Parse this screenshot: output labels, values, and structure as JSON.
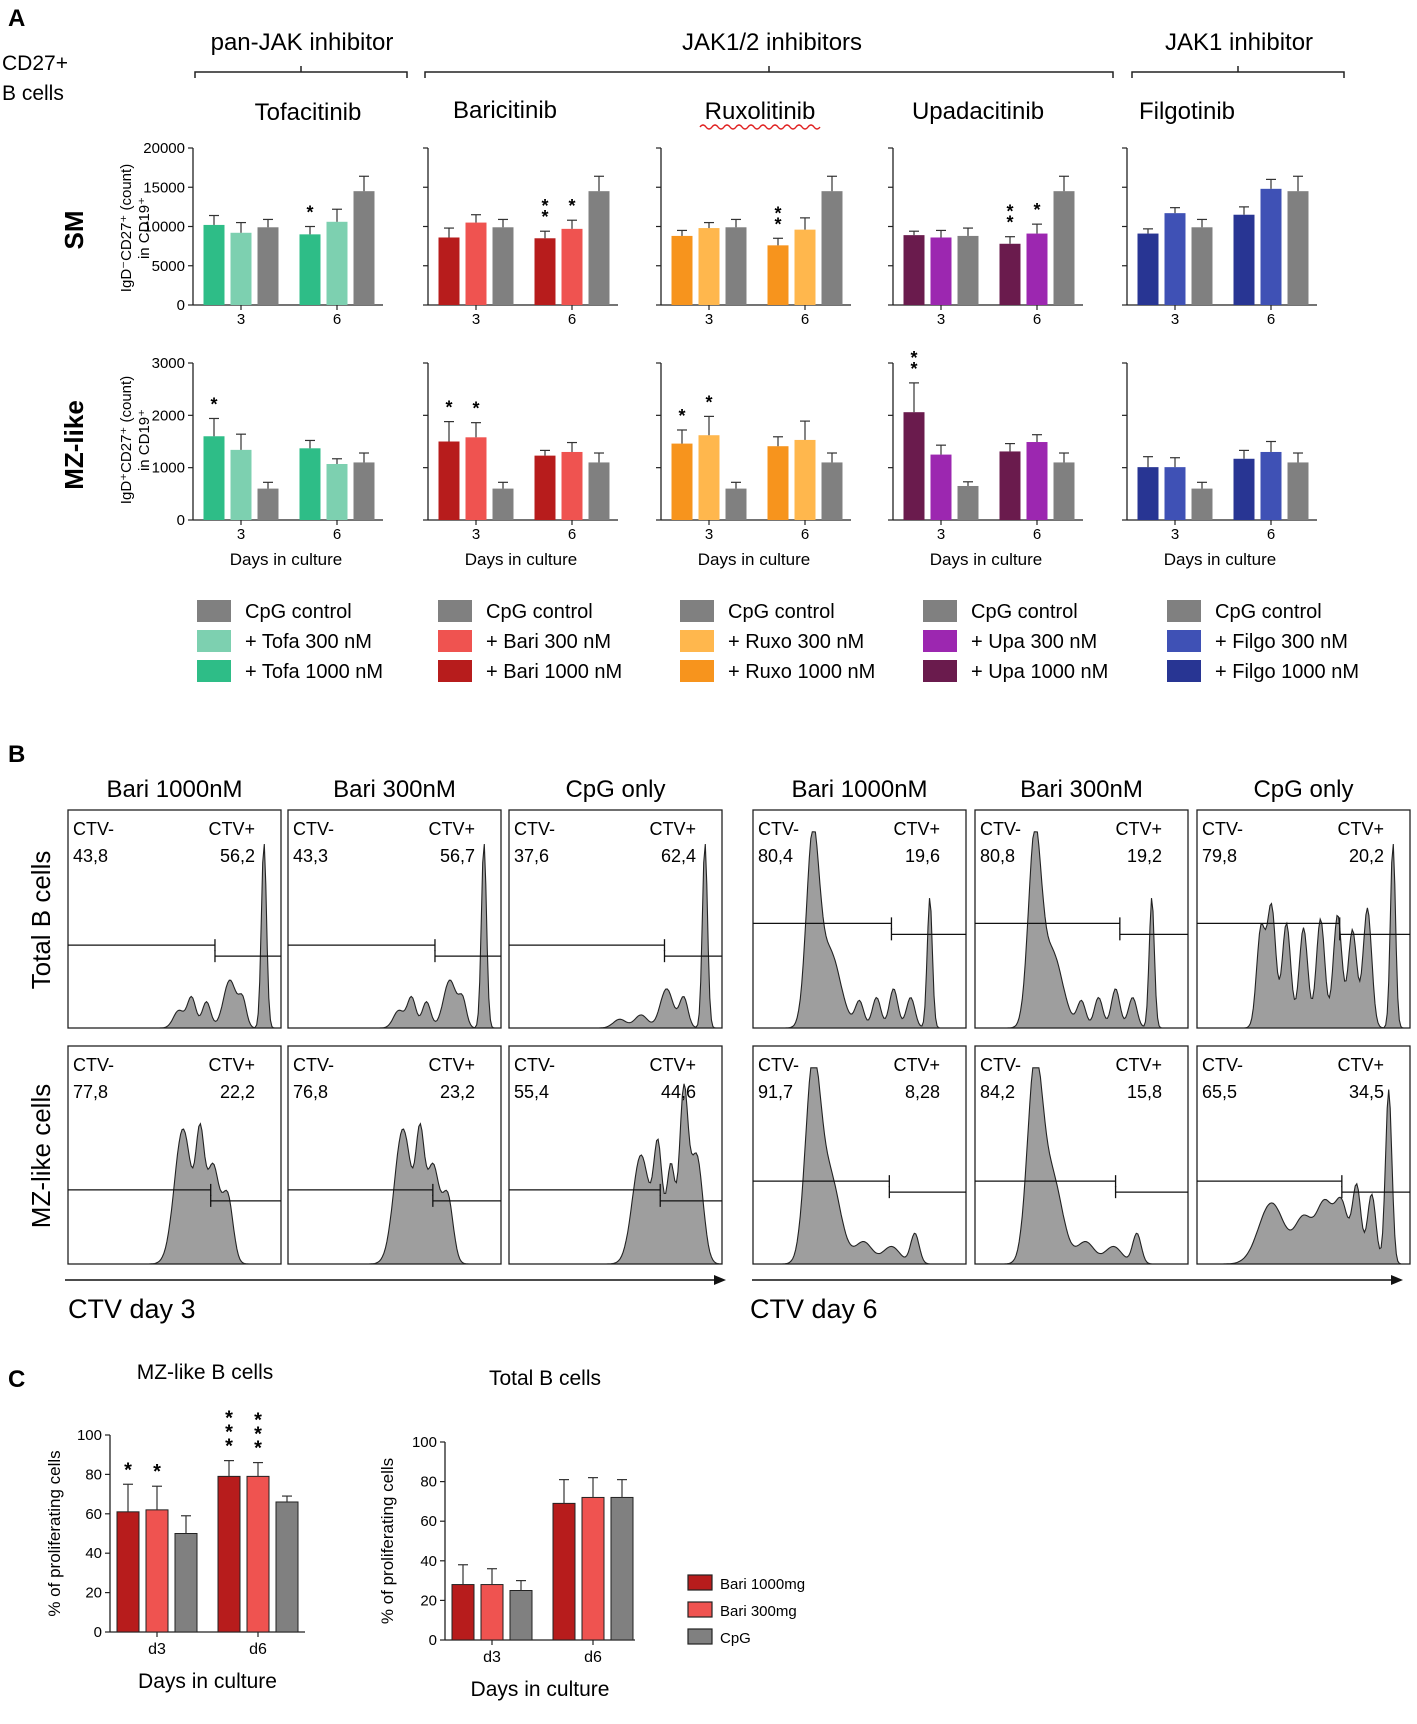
{
  "figure": {
    "panel_a": {
      "label": "A",
      "cell_label_1": "CD27+",
      "cell_label_2": "B cells",
      "groups": [
        {
          "label": "pan-JAK inhibitor"
        },
        {
          "label": "JAK1/2 inhibitors"
        },
        {
          "label": "JAK1 inhibitor"
        }
      ],
      "rows": [
        {
          "label": "SM",
          "ylabel_1": "IgD⁻CD27⁺ (count)",
          "ylabel_2": "in CD19⁺"
        },
        {
          "label": "MZ-like",
          "ylabel_1": "IgD⁺CD27⁺ (count)",
          "ylabel_2": "in CD19⁺"
        }
      ],
      "drugs": [
        {
          "name": "Tofacitinib",
          "short": "Tofa",
          "colors": {
            "c300": "#7dd0b0",
            "c1000": "#2ebd87",
            "ctrl": "#808080"
          },
          "legend": {
            "ctrl": "CpG control",
            "l300": "+ Tofa 300 nM",
            "l1000": "+ Tofa 1000 nM"
          }
        },
        {
          "name": "Baricitinib",
          "short": "Bari",
          "colors": {
            "c300": "#ef5350",
            "c1000": "#b71c1c",
            "ctrl": "#808080"
          },
          "legend": {
            "ctrl": "CpG control",
            "l300": "+ Bari 300 nM",
            "l1000": "+ Bari 1000 nM"
          }
        },
        {
          "name": "Ruxolitinib",
          "short": "Ruxo",
          "colors": {
            "c300": "#ffb74d",
            "c1000": "#f7941d",
            "ctrl": "#808080"
          },
          "legend": {
            "ctrl": "CpG control",
            "l300": "+ Ruxo 300 nM",
            "l1000": "+ Ruxo 1000 nM"
          }
        },
        {
          "name": "Upadacitinib",
          "short": "Upa",
          "colors": {
            "c300": "#9c27b0",
            "c1000": "#6a1b4d",
            "ctrl": "#808080"
          },
          "legend": {
            "ctrl": "CpG control",
            "l300": "+ Upa 300 nM",
            "l1000": "+ Upa 1000 nM"
          }
        },
        {
          "name": "Filgotinib",
          "short": "Filgo",
          "colors": {
            "c300": "#3f51b5",
            "c1000": "#283593",
            "ctrl": "#808080"
          },
          "legend": {
            "ctrl": "CpG control",
            "l300": "+ Filgo 300 nM",
            "l1000": "+ Filgo 1000 nM"
          }
        }
      ],
      "xlabel": "Days in culture"
    },
    "panel_b": {
      "label": "B",
      "col_titles": [
        "Bari 1000nM",
        "Bari 300nM",
        "CpG only",
        "Bari 1000nM",
        "Bari 300nM",
        "CpG only"
      ],
      "row_labels": [
        "Total B cells",
        "MZ-like cells"
      ],
      "gate_neg": "CTV-",
      "gate_pos": "CTV+",
      "axis_label_d3": "CTV day 3",
      "axis_label_d6": "CTV day 6",
      "gates": [
        [
          [
            "43,8",
            "56,2"
          ],
          [
            "43,3",
            "56,7"
          ],
          [
            "37,6",
            "62,4"
          ],
          [
            "80,4",
            "19,6"
          ],
          [
            "80,8",
            "19,2"
          ],
          [
            "79,8",
            "20,2"
          ]
        ],
        [
          [
            "77,8",
            "22,2"
          ],
          [
            "76,8",
            "23,2"
          ],
          [
            "55,4",
            "44,6"
          ],
          [
            "91,7",
            "8,28"
          ],
          [
            "84,2",
            "15,8"
          ],
          [
            "65,5",
            "34,5"
          ]
        ]
      ]
    },
    "panel_c": {
      "label": "C",
      "legend": [
        {
          "label": "Bari 1000mg",
          "color": "#b71c1c"
        },
        {
          "label": "Bari 300mg",
          "color": "#ef5350"
        },
        {
          "label": "CpG",
          "color": "#808080"
        }
      ]
    }
  },
  "chart_data": [
    {
      "type": "bar",
      "title": "Tofacitinib SM",
      "categories": [
        "3",
        "6"
      ],
      "ylabel": "IgD-CD27+ in CD19+ (count)",
      "xlabel": "",
      "ylim": [
        0,
        20000
      ],
      "yticks": [
        0,
        5000,
        10000,
        15000,
        20000
      ],
      "series": [
        {
          "name": "+ Tofa 1000 nM",
          "values": [
            10200,
            9000
          ]
        },
        {
          "name": "+ Tofa 300 nM",
          "values": [
            9200,
            10600
          ]
        },
        {
          "name": "CpG control",
          "values": [
            9900,
            14500
          ]
        }
      ],
      "errors": [
        [
          1200,
          1000
        ],
        [
          1300,
          1600
        ],
        [
          1000,
          1900
        ]
      ],
      "significance": [
        [
          "",
          "*"
        ],
        [
          "",
          ""
        ],
        [
          "",
          ""
        ]
      ]
    },
    {
      "type": "bar",
      "title": "Baricitinib SM",
      "categories": [
        "3",
        "6"
      ],
      "ylim": [
        0,
        20000
      ],
      "series": [
        {
          "name": "+ Bari 1000 nM",
          "values": [
            8600,
            8500
          ]
        },
        {
          "name": "+ Bari 300 nM",
          "values": [
            10500,
            9700
          ]
        },
        {
          "name": "CpG control",
          "values": [
            9900,
            14500
          ]
        }
      ],
      "errors": [
        [
          1200,
          900
        ],
        [
          1000,
          1100
        ],
        [
          1000,
          1900
        ]
      ],
      "significance": [
        [
          "",
          "**"
        ],
        [
          "",
          "*"
        ],
        [
          "",
          ""
        ]
      ]
    },
    {
      "type": "bar",
      "title": "Ruxolitinib SM",
      "categories": [
        "3",
        "6"
      ],
      "ylim": [
        0,
        20000
      ],
      "series": [
        {
          "name": "+ Ruxo 1000 nM",
          "values": [
            8800,
            7600
          ]
        },
        {
          "name": "+ Ruxo 300 nM",
          "values": [
            9800,
            9600
          ]
        },
        {
          "name": "CpG control",
          "values": [
            9900,
            14500
          ]
        }
      ],
      "errors": [
        [
          700,
          900
        ],
        [
          700,
          1500
        ],
        [
          1000,
          1900
        ]
      ],
      "significance": [
        [
          "",
          "**"
        ],
        [
          "",
          ""
        ],
        [
          "",
          ""
        ]
      ]
    },
    {
      "type": "bar",
      "title": "Upadacitinib SM",
      "categories": [
        "3",
        "6"
      ],
      "ylim": [
        0,
        20000
      ],
      "series": [
        {
          "name": "+ Upa 1000 nM",
          "values": [
            8900,
            7800
          ]
        },
        {
          "name": "+ Upa 300 nM",
          "values": [
            8600,
            9100
          ]
        },
        {
          "name": "CpG control",
          "values": [
            8800,
            14500
          ]
        }
      ],
      "errors": [
        [
          500,
          900
        ],
        [
          900,
          1200
        ],
        [
          1000,
          1900
        ]
      ],
      "significance": [
        [
          "",
          "**"
        ],
        [
          "",
          "*"
        ],
        [
          "",
          ""
        ]
      ]
    },
    {
      "type": "bar",
      "title": "Filgotinib SM",
      "categories": [
        "3",
        "6"
      ],
      "ylim": [
        0,
        20000
      ],
      "series": [
        {
          "name": "+ Filgo 1000 nM",
          "values": [
            9100,
            11500
          ]
        },
        {
          "name": "+ Filgo 300 nM",
          "values": [
            11700,
            14800
          ]
        },
        {
          "name": "CpG control",
          "values": [
            9900,
            14500
          ]
        }
      ],
      "errors": [
        [
          600,
          1000
        ],
        [
          700,
          1200
        ],
        [
          1000,
          1900
        ]
      ],
      "significance": [
        [
          "",
          ""
        ],
        [
          "",
          ""
        ],
        [
          "",
          ""
        ]
      ]
    },
    {
      "type": "bar",
      "title": "Tofacitinib MZ-like",
      "categories": [
        "3",
        "6"
      ],
      "ylabel": "IgD+CD27+ in CD19+ (count)",
      "xlabel": "Days in culture",
      "ylim": [
        0,
        3000
      ],
      "yticks": [
        0,
        1000,
        2000,
        3000
      ],
      "series": [
        {
          "name": "+ Tofa 1000 nM",
          "values": [
            1600,
            1370
          ]
        },
        {
          "name": "+ Tofa 300 nM",
          "values": [
            1340,
            1070
          ]
        },
        {
          "name": "CpG control",
          "values": [
            600,
            1100
          ]
        }
      ],
      "errors": [
        [
          340,
          150
        ],
        [
          300,
          100
        ],
        [
          120,
          180
        ]
      ],
      "significance": [
        [
          "*",
          ""
        ],
        [
          "",
          ""
        ],
        [
          "",
          ""
        ]
      ]
    },
    {
      "type": "bar",
      "title": "Baricitinib MZ-like",
      "categories": [
        "3",
        "6"
      ],
      "xlabel": "Days in culture",
      "ylim": [
        0,
        3000
      ],
      "series": [
        {
          "name": "+ Bari 1000 nM",
          "values": [
            1500,
            1230
          ]
        },
        {
          "name": "+ Bari 300 nM",
          "values": [
            1580,
            1300
          ]
        },
        {
          "name": "CpG control",
          "values": [
            600,
            1100
          ]
        }
      ],
      "errors": [
        [
          380,
          100
        ],
        [
          280,
          180
        ],
        [
          120,
          180
        ]
      ],
      "significance": [
        [
          "*",
          ""
        ],
        [
          "*",
          ""
        ],
        [
          "",
          ""
        ]
      ]
    },
    {
      "type": "bar",
      "title": "Ruxolitinib MZ-like",
      "categories": [
        "3",
        "6"
      ],
      "xlabel": "Days in culture",
      "ylim": [
        0,
        3000
      ],
      "series": [
        {
          "name": "+ Ruxo 1000 nM",
          "values": [
            1460,
            1410
          ]
        },
        {
          "name": "+ Ruxo 300 nM",
          "values": [
            1620,
            1530
          ]
        },
        {
          "name": "CpG control",
          "values": [
            600,
            1100
          ]
        }
      ],
      "errors": [
        [
          260,
          180
        ],
        [
          360,
          360
        ],
        [
          120,
          180
        ]
      ],
      "significance": [
        [
          "*",
          ""
        ],
        [
          "*",
          ""
        ],
        [
          "",
          ""
        ]
      ]
    },
    {
      "type": "bar",
      "title": "Upadacitinib MZ-like",
      "categories": [
        "3",
        "6"
      ],
      "xlabel": "Days in culture",
      "ylim": [
        0,
        3000
      ],
      "series": [
        {
          "name": "+ Upa 1000 nM",
          "values": [
            2060,
            1310
          ]
        },
        {
          "name": "+ Upa 300 nM",
          "values": [
            1250,
            1490
          ]
        },
        {
          "name": "CpG control",
          "values": [
            650,
            1100
          ]
        }
      ],
      "errors": [
        [
          560,
          150
        ],
        [
          180,
          140
        ],
        [
          80,
          180
        ]
      ],
      "significance": [
        [
          "**",
          ""
        ],
        [
          "",
          ""
        ],
        [
          "",
          ""
        ]
      ]
    },
    {
      "type": "bar",
      "title": "Filgotinib MZ-like",
      "categories": [
        "3",
        "6"
      ],
      "xlabel": "Days in culture",
      "ylim": [
        0,
        3000
      ],
      "series": [
        {
          "name": "+ Filgo 1000 nM",
          "values": [
            1010,
            1170
          ]
        },
        {
          "name": "+ Filgo 300 nM",
          "values": [
            1010,
            1300
          ]
        },
        {
          "name": "CpG control",
          "values": [
            600,
            1100
          ]
        }
      ],
      "errors": [
        [
          200,
          160
        ],
        [
          180,
          200
        ],
        [
          120,
          180
        ]
      ],
      "significance": [
        [
          "",
          ""
        ],
        [
          "",
          ""
        ],
        [
          "",
          ""
        ]
      ]
    },
    {
      "type": "bar",
      "title": "MZ-like B cells",
      "categories": [
        "d3",
        "d6"
      ],
      "xlabel": "Days in culture",
      "ylabel": "% of proliferating cells",
      "ylim": [
        0,
        100
      ],
      "yticks": [
        0,
        20,
        40,
        60,
        80,
        100
      ],
      "series": [
        {
          "name": "Bari 1000mg",
          "values": [
            61,
            79
          ]
        },
        {
          "name": "Bari 300mg",
          "values": [
            62,
            79
          ]
        },
        {
          "name": "CpG",
          "values": [
            50,
            66
          ]
        }
      ],
      "errors": [
        [
          14,
          8
        ],
        [
          12,
          7
        ],
        [
          9,
          3
        ]
      ],
      "significance": [
        [
          "*",
          "***"
        ],
        [
          "*",
          "***"
        ],
        [
          "",
          ""
        ]
      ]
    },
    {
      "type": "bar",
      "title": "Total B cells",
      "categories": [
        "d3",
        "d6"
      ],
      "xlabel": "Days in culture",
      "ylabel": "% of proliferating cells",
      "ylim": [
        0,
        100
      ],
      "yticks": [
        0,
        20,
        40,
        60,
        80,
        100
      ],
      "series": [
        {
          "name": "Bari 1000mg",
          "values": [
            28,
            69
          ]
        },
        {
          "name": "Bari 300mg",
          "values": [
            28,
            72
          ]
        },
        {
          "name": "CpG",
          "values": [
            25,
            72
          ]
        }
      ],
      "errors": [
        [
          10,
          12
        ],
        [
          8,
          10
        ],
        [
          5,
          9
        ]
      ],
      "significance": [
        [
          "",
          ""
        ],
        [
          "",
          ""
        ],
        [
          "",
          ""
        ]
      ]
    }
  ]
}
